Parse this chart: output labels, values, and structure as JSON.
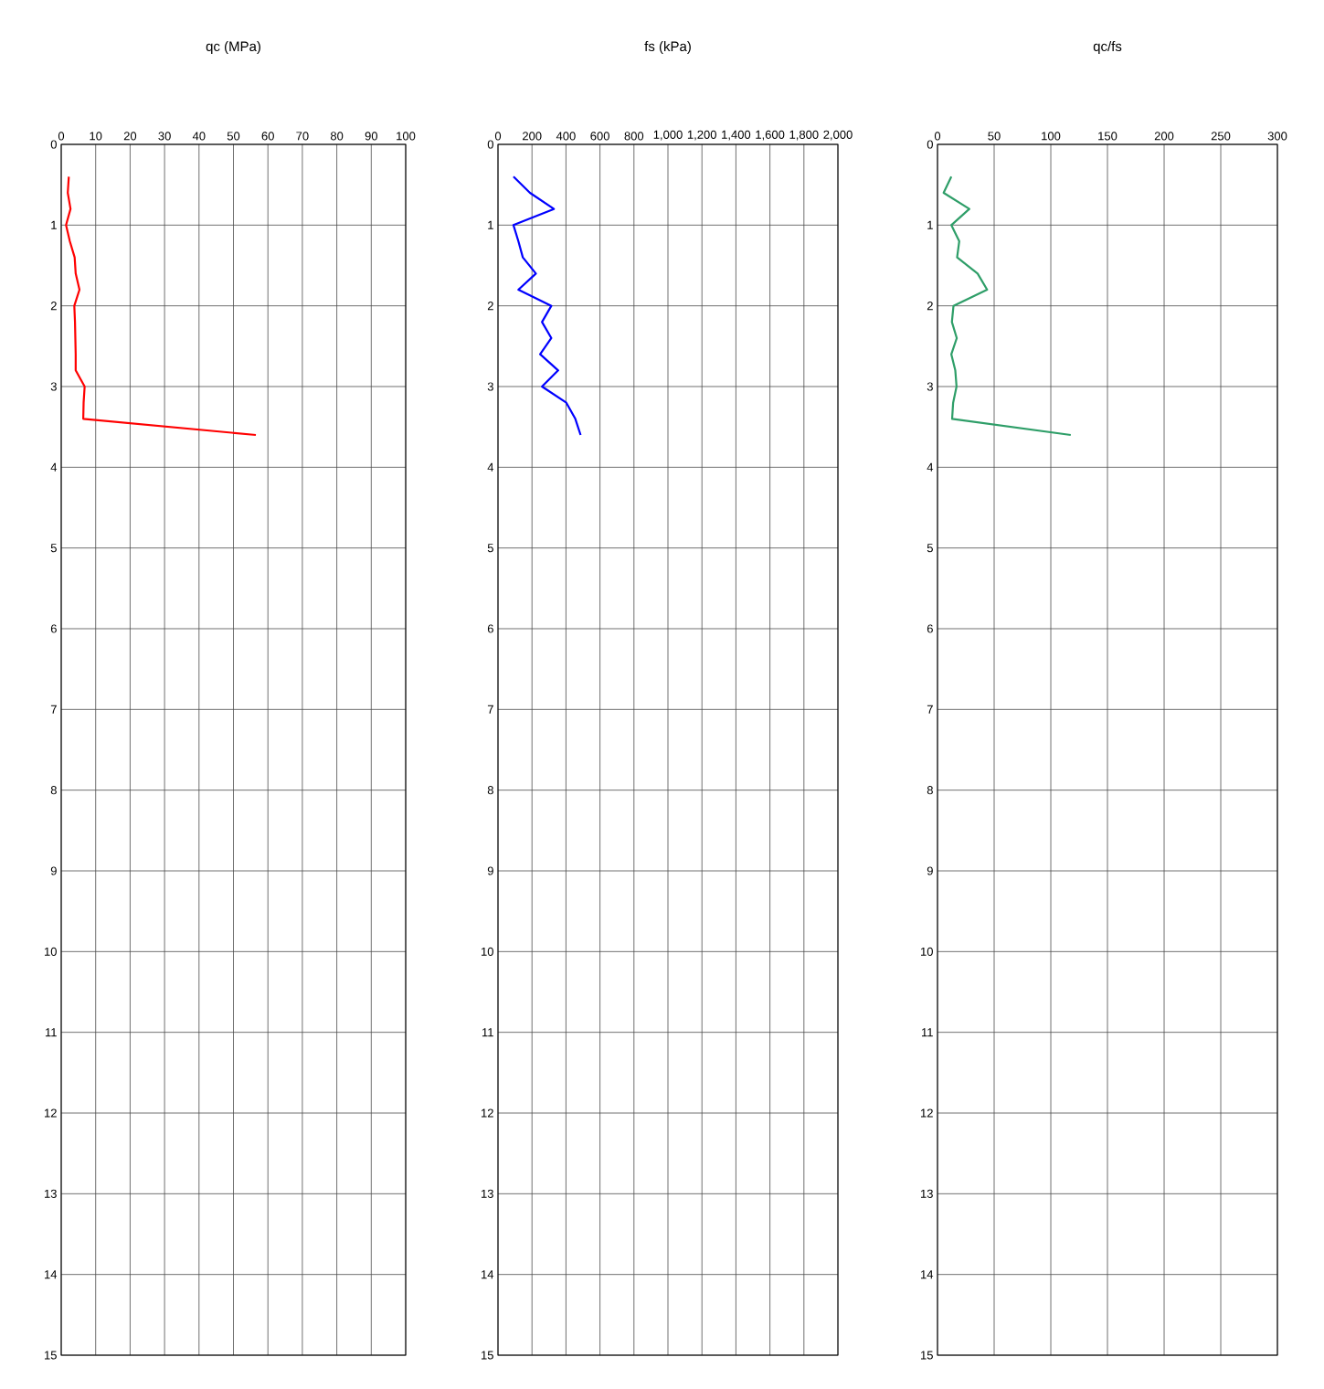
{
  "chart_data": [
    {
      "type": "line",
      "title": "qc (MPa)",
      "xlim": [
        0,
        100
      ],
      "xticks": [
        0,
        10,
        20,
        30,
        40,
        50,
        60,
        70,
        80,
        90,
        100
      ],
      "ylim": [
        15,
        0
      ],
      "yticks": [
        0,
        1,
        2,
        3,
        4,
        5,
        6,
        7,
        8,
        9,
        10,
        11,
        12,
        13,
        14,
        15
      ],
      "grid": true,
      "series": [
        {
          "color": "#ff0000",
          "x": [
            2.2,
            1.9,
            2.7,
            1.4,
            2.5,
            3.9,
            4.2,
            5.3,
            3.8,
            4.0,
            4.1,
            4.2,
            4.2,
            6.8,
            6.5,
            6.4,
            56.5
          ],
          "values": [
            0.4,
            0.6,
            0.8,
            1.0,
            1.2,
            1.4,
            1.6,
            1.8,
            2.0,
            2.2,
            2.4,
            2.6,
            2.8,
            3.0,
            3.2,
            3.4,
            3.6
          ]
        }
      ]
    },
    {
      "type": "line",
      "title": "fs (kPa)",
      "xlim": [
        0,
        2000
      ],
      "xticks": [
        0,
        200,
        400,
        600,
        800,
        {
          "value": 1000,
          "label": "1,000"
        },
        {
          "value": 1200,
          "label": "1,200"
        },
        {
          "value": 1400,
          "label": "1,400"
        },
        {
          "value": 1600,
          "label": "1,600"
        },
        {
          "value": 1800,
          "label": "1,800"
        },
        {
          "value": 2000,
          "label": "2,000"
        }
      ],
      "ylim": [
        15,
        0
      ],
      "yticks": [
        0,
        1,
        2,
        3,
        4,
        5,
        6,
        7,
        8,
        9,
        10,
        11,
        12,
        13,
        14,
        15
      ],
      "grid": true,
      "series": [
        {
          "color": "#0000ff",
          "x": [
            91,
            188,
            329,
            91,
            120,
            146,
            223,
            120,
            314,
            259,
            314,
            248,
            354,
            259,
            402,
            455,
            486
          ],
          "values": [
            0.4,
            0.6,
            0.8,
            1.0,
            1.2,
            1.4,
            1.6,
            1.8,
            2.0,
            2.2,
            2.4,
            2.6,
            2.8,
            3.0,
            3.2,
            3.4,
            3.6
          ]
        }
      ]
    },
    {
      "type": "line",
      "title": "qc/fs",
      "xlim": [
        0,
        300
      ],
      "xticks": [
        0,
        50,
        100,
        150,
        200,
        250,
        300
      ],
      "ylim": [
        15,
        0
      ],
      "yticks": [
        0,
        1,
        2,
        3,
        4,
        5,
        6,
        7,
        8,
        9,
        10,
        11,
        12,
        13,
        14,
        15
      ],
      "grid": true,
      "series": [
        {
          "color": "#2e9e68",
          "x": [
            12.2,
            5.4,
            28.1,
            12.2,
            19.2,
            17.3,
            35.4,
            43.8,
            14.1,
            12.7,
            17.0,
            12.2,
            15.7,
            16.8,
            13.8,
            12.9,
            117.6
          ],
          "values": [
            0.4,
            0.6,
            0.8,
            1.0,
            1.2,
            1.4,
            1.6,
            1.8,
            2.0,
            2.2,
            2.4,
            2.6,
            2.8,
            3.0,
            3.2,
            3.4,
            3.6
          ]
        }
      ]
    }
  ]
}
